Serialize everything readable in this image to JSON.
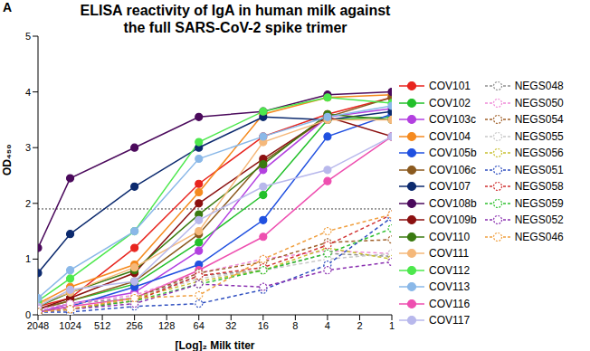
{
  "chart_data": {
    "type": "line",
    "title": "ELISA reactivity of IgA in human milk against\nthe full SARS-CoV-2 spike trimer",
    "annotations": [
      "A"
    ],
    "x_label": "[Log]₂ Milk titer",
    "y_label": "OD₄₅₀",
    "x": [
      2048,
      1024,
      256,
      64,
      16,
      4,
      1
    ],
    "log": "x",
    "xlim": [
      1,
      2048
    ],
    "xticks": [
      2048,
      1024,
      512,
      256,
      128,
      64,
      32,
      16,
      8,
      4,
      2,
      1
    ],
    "ylim": [
      0,
      5
    ],
    "yticks": [
      0,
      1,
      2,
      3,
      4,
      5
    ],
    "grid": false,
    "legend": "right",
    "reference_line": 1.9,
    "series": [
      {
        "name": "COV101",
        "color": "#e8251f",
        "marker": "circle",
        "line_style": "solid",
        "values": [
          0.15,
          0.3,
          1.2,
          2.35,
          3.2,
          3.6,
          3.9
        ]
      },
      {
        "name": "COV102",
        "color": "#22c02a",
        "marker": "circle",
        "line_style": "solid",
        "values": [
          0.1,
          0.25,
          0.55,
          1.3,
          2.15,
          3.5,
          3.55
        ]
      },
      {
        "name": "COV103c",
        "color": "#b340e0",
        "marker": "circle",
        "line_style": "solid",
        "values": [
          0.05,
          0.2,
          0.4,
          1.15,
          2.6,
          3.55,
          3.7
        ]
      },
      {
        "name": "COV104",
        "color": "#f58a1f",
        "marker": "circle",
        "line_style": "solid",
        "values": [
          0.2,
          0.5,
          0.9,
          2.2,
          3.6,
          3.9,
          3.95
        ]
      },
      {
        "name": "COV105b",
        "color": "#2050e0",
        "marker": "circle",
        "line_style": "solid",
        "values": [
          0.05,
          0.15,
          0.5,
          0.9,
          1.7,
          3.2,
          3.6
        ]
      },
      {
        "name": "COV106c",
        "color": "#8b5a1f",
        "marker": "circle",
        "line_style": "solid",
        "values": [
          0.1,
          0.25,
          0.6,
          1.45,
          2.75,
          3.55,
          3.9
        ]
      },
      {
        "name": "COV107",
        "color": "#0c2a6e",
        "marker": "circle",
        "line_style": "solid",
        "values": [
          0.75,
          1.45,
          2.3,
          3.0,
          3.55,
          3.5,
          3.65
        ]
      },
      {
        "name": "COV108b",
        "color": "#4b0a5c",
        "marker": "circle",
        "line_style": "solid",
        "values": [
          1.2,
          2.45,
          3.0,
          3.55,
          3.65,
          3.95,
          4.0
        ]
      },
      {
        "name": "COV109b",
        "color": "#8b1010",
        "marker": "circle",
        "line_style": "solid",
        "values": [
          0.1,
          0.3,
          0.75,
          2.0,
          2.8,
          3.55,
          3.2
        ]
      },
      {
        "name": "COV110",
        "color": "#3a7a10",
        "marker": "circle",
        "line_style": "solid",
        "values": [
          0.15,
          0.4,
          0.8,
          1.8,
          2.7,
          3.6,
          3.5
        ]
      },
      {
        "name": "COV111",
        "color": "#f5b87a",
        "marker": "circle",
        "line_style": "solid",
        "values": [
          0.2,
          0.4,
          0.85,
          1.5,
          3.1,
          3.5,
          3.5
        ]
      },
      {
        "name": "COV112",
        "color": "#4de84d",
        "marker": "circle",
        "line_style": "solid",
        "values": [
          0.25,
          0.65,
          1.5,
          3.1,
          3.65,
          3.9,
          3.8
        ]
      },
      {
        "name": "COV113",
        "color": "#8ab8e8",
        "marker": "circle",
        "line_style": "solid",
        "values": [
          0.3,
          0.8,
          1.5,
          2.8,
          3.2,
          3.55,
          3.75
        ]
      },
      {
        "name": "COV116",
        "color": "#ee4fb0",
        "marker": "circle",
        "line_style": "solid",
        "values": [
          0.05,
          0.15,
          0.3,
          0.8,
          1.4,
          2.4,
          3.2
        ]
      },
      {
        "name": "COV117",
        "color": "#b8b8ec",
        "marker": "circle",
        "line_style": "solid",
        "values": [
          0.15,
          0.45,
          0.6,
          1.7,
          2.3,
          2.6,
          3.2
        ]
      },
      {
        "name": "NEGS048",
        "color": "#909090",
        "marker": "open_circle",
        "line_style": "dashed",
        "values": [
          0.1,
          0.2,
          0.3,
          0.7,
          0.8,
          1.1,
          1.05
        ]
      },
      {
        "name": "NEGS050",
        "color": "#f08ad8",
        "marker": "open_circle",
        "line_style": "dashed",
        "values": [
          0.1,
          0.2,
          0.35,
          0.75,
          1.0,
          1.15,
          1.1
        ]
      },
      {
        "name": "NEGS054",
        "color": "#a0602a",
        "marker": "open_circle",
        "line_style": "dashed",
        "values": [
          0.05,
          0.1,
          0.3,
          0.75,
          0.95,
          1.3,
          1.35
        ]
      },
      {
        "name": "NEGS055",
        "color": "#c8c8c8",
        "marker": "open_circle",
        "line_style": "dashed",
        "values": [
          0.05,
          0.1,
          0.3,
          0.65,
          0.8,
          1.0,
          1.1
        ]
      },
      {
        "name": "NEGS056",
        "color": "#c8c030",
        "marker": "open_circle",
        "line_style": "dashed",
        "values": [
          0.05,
          0.1,
          0.3,
          0.6,
          0.8,
          1.2,
          1.0
        ]
      },
      {
        "name": "NEGS051",
        "color": "#3050c0",
        "marker": "open_circle",
        "line_style": "dashed",
        "values": [
          0.05,
          0.05,
          0.15,
          0.2,
          0.45,
          0.9,
          1.75
        ]
      },
      {
        "name": "NEGS058",
        "color": "#d03030",
        "marker": "open_circle",
        "line_style": "dashed",
        "values": [
          0.05,
          0.1,
          0.25,
          0.7,
          0.85,
          1.25,
          1.8
        ]
      },
      {
        "name": "NEGS059",
        "color": "#30c030",
        "marker": "open_circle",
        "line_style": "dashed",
        "values": [
          0.05,
          0.1,
          0.25,
          0.55,
          0.8,
          1.1,
          1.55
        ]
      },
      {
        "name": "NEGS052",
        "color": "#8a30b0",
        "marker": "open_circle",
        "line_style": "dashed",
        "values": [
          0.05,
          0.1,
          0.2,
          0.55,
          0.5,
          0.8,
          0.95
        ]
      },
      {
        "name": "NEGS046",
        "color": "#f0a040",
        "marker": "open_circle",
        "line_style": "dashed",
        "values": [
          0.05,
          0.1,
          0.3,
          0.35,
          1.0,
          1.5,
          1.8
        ]
      }
    ]
  }
}
